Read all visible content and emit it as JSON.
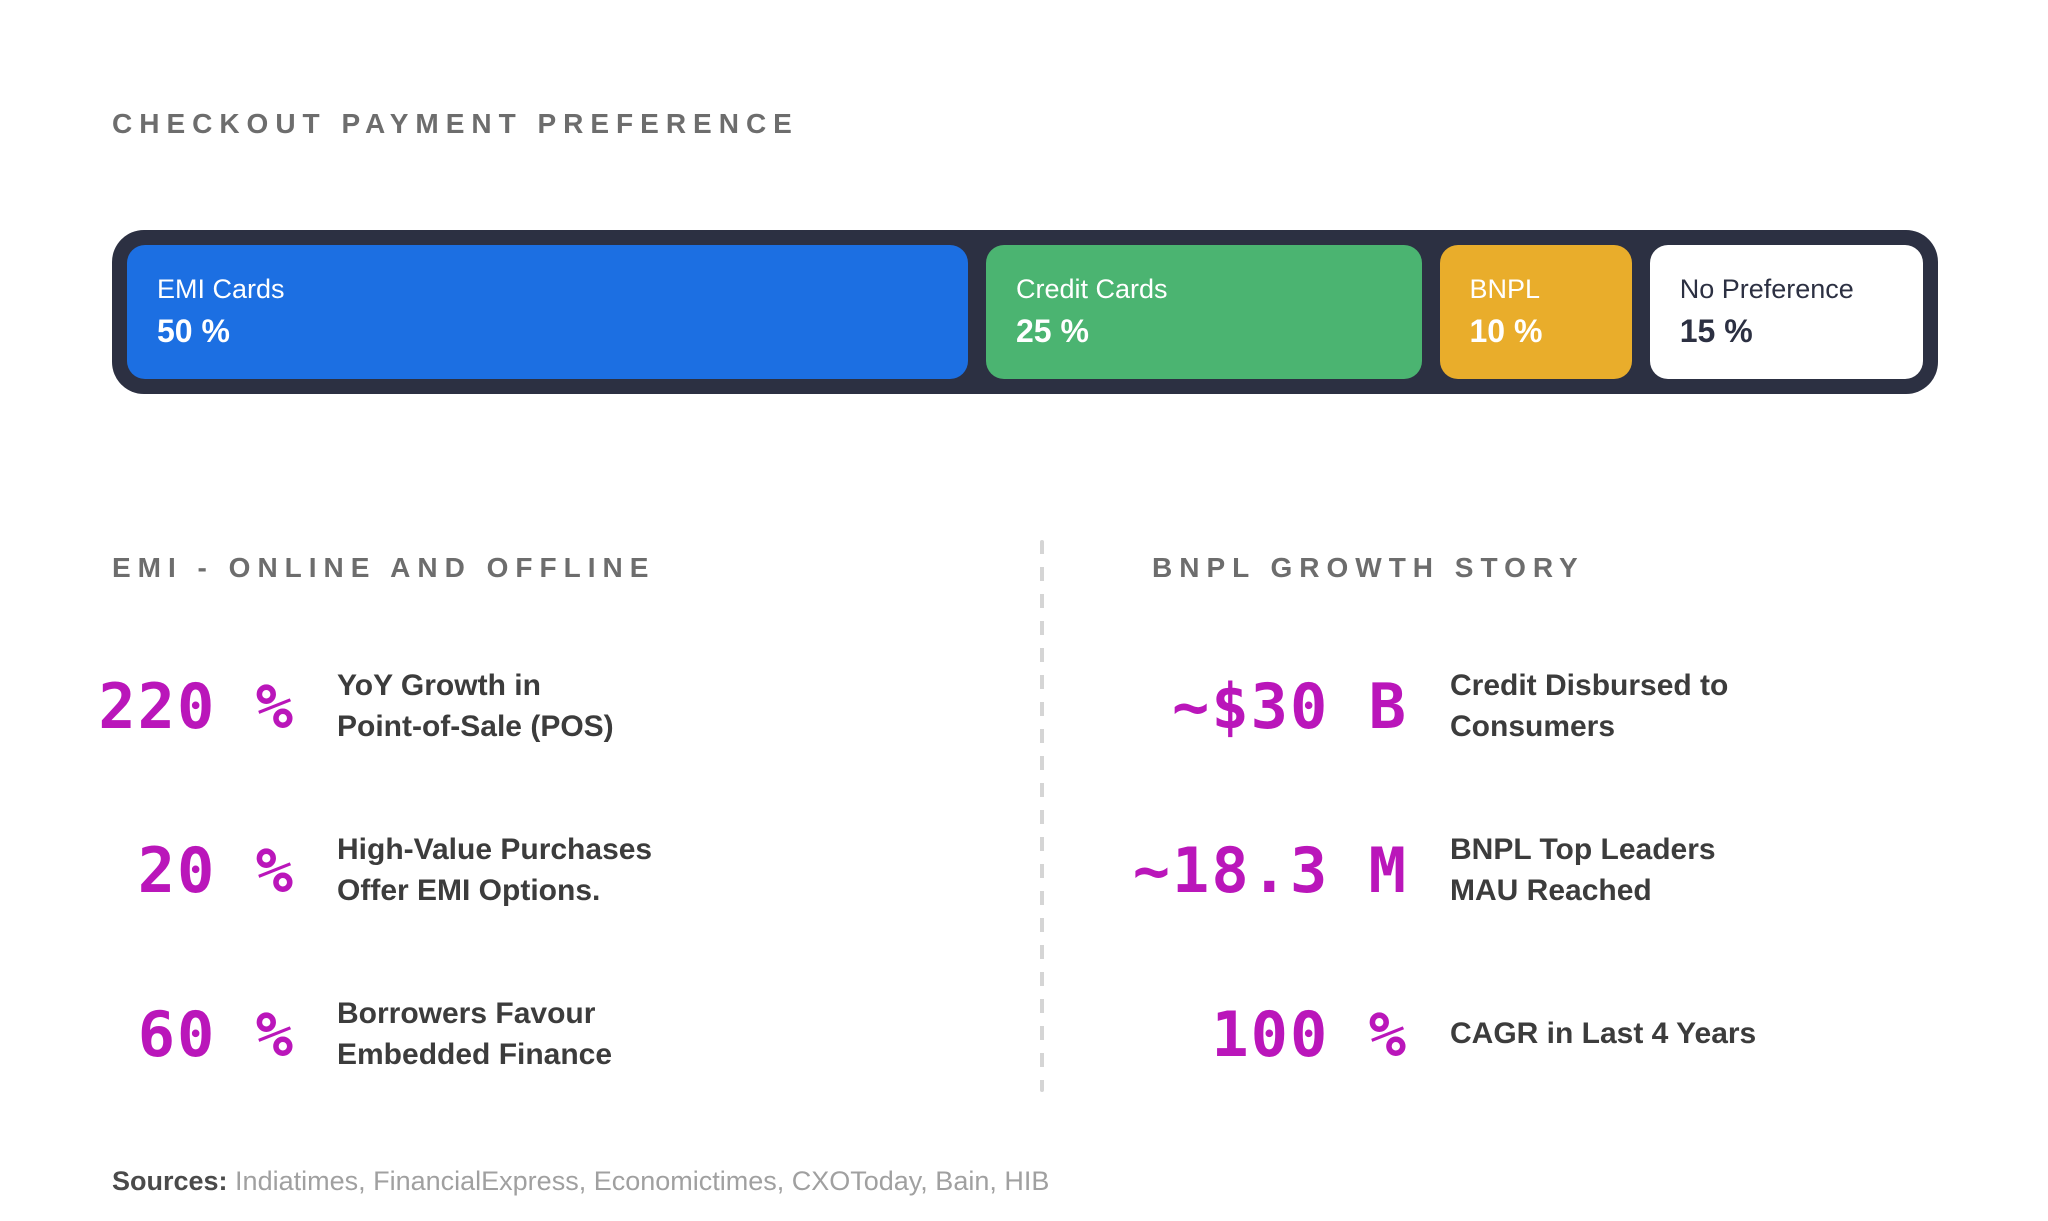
{
  "title": "CHECKOUT PAYMENT PREFERENCE",
  "chart_data": {
    "type": "bar",
    "subtype": "horizontal-stacked-100-percent",
    "title": "CHECKOUT PAYMENT PREFERENCE",
    "categories": [
      "EMI Cards",
      "Credit Cards",
      "BNPL",
      "No Preference"
    ],
    "values": [
      50,
      25,
      10,
      15
    ],
    "unit": "%",
    "colors": [
      "#1c6fe2",
      "#4bb471",
      "#e9ad2b",
      "#ffffff"
    ],
    "container_color": "#2c3042",
    "legend": "labels inline inside segments",
    "xlim": [
      0,
      100
    ]
  },
  "bar": {
    "segments": [
      {
        "label": "EMI Cards",
        "value_label": "50 %",
        "color": "#1c6fe2"
      },
      {
        "label": "Credit Cards",
        "value_label": "25 %",
        "color": "#4bb471"
      },
      {
        "label": "BNPL",
        "value_label": "10 %",
        "color": "#e9ad2b"
      },
      {
        "label": "No Preference",
        "value_label": "15 %",
        "color": "#ffffff"
      }
    ]
  },
  "sections": {
    "emi": {
      "heading": "EMI - ONLINE AND OFFLINE",
      "stats": [
        {
          "value": "220 %",
          "desc": "YoY Growth in\nPoint-of-Sale (POS)"
        },
        {
          "value": "20 %",
          "desc": "High-Value Purchases\nOffer EMI Options."
        },
        {
          "value": "60 %",
          "desc": "Borrowers Favour\nEmbedded Finance"
        }
      ]
    },
    "bnpl": {
      "heading": "BNPL GROWTH STORY",
      "stats": [
        {
          "value": "~$30 B",
          "desc": "Credit Disbursed to\nConsumers"
        },
        {
          "value": "~18.3 M",
          "desc": "BNPL Top Leaders\nMAU Reached"
        },
        {
          "value": "100 %",
          "desc": "CAGR in Last 4 Years"
        }
      ]
    }
  },
  "footer": {
    "label": "Sources:",
    "text": " Indiatimes, FinancialExpress, Economictimes, CXOToday, Bain, HIB"
  },
  "accent_colors": {
    "stat_number": "#ba16ba",
    "heading_gray": "#6d6d6d",
    "body_text": "#3c3c3c",
    "divider": "#d5d5d5"
  }
}
